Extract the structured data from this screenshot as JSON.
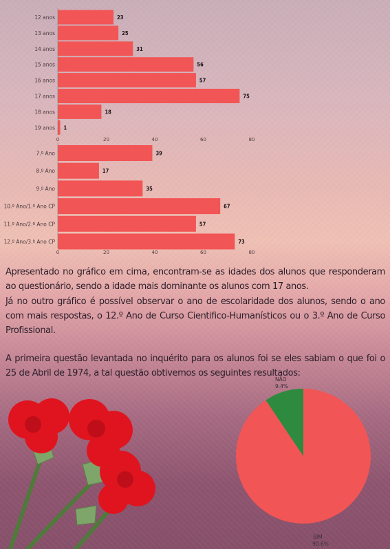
{
  "colors": {
    "bar": "#f25555",
    "pie_sim": "#f25555",
    "pie_nao": "#2e8a3e"
  },
  "chart_data": [
    {
      "type": "bar",
      "orientation": "horizontal",
      "categories": [
        "12 anos",
        "13 anos",
        "14 anos",
        "15 anos",
        "16 anos",
        "17 anos",
        "18 anos",
        "19 anos"
      ],
      "values": [
        23,
        25,
        31,
        56,
        57,
        75,
        18,
        1
      ],
      "xlim": [
        0,
        80
      ],
      "ticks": [
        "0",
        "20",
        "40",
        "60",
        "80"
      ]
    },
    {
      "type": "bar",
      "orientation": "horizontal",
      "categories": [
        "7.º Ano",
        "8.º Ano",
        "9.º Ano",
        "10.º Ano/1.º Ano CP",
        "11.º Ano/2.º Ano CP",
        "12.º Ano/3.º Ano CP"
      ],
      "values": [
        39,
        17,
        35,
        67,
        57,
        73
      ],
      "xlim": [
        0,
        80
      ],
      "ticks": [
        "0",
        "20",
        "40",
        "60",
        "80"
      ]
    },
    {
      "type": "pie",
      "slices": [
        {
          "label": "SIM",
          "percent_label": "90.6%",
          "value": 90.6
        },
        {
          "label": "NÃO",
          "percent_label": "9.4%",
          "value": 9.4
        }
      ]
    }
  ],
  "text": {
    "para1": "Apresentado no gráfico em cima, encontram-se as idades dos alunos que responderam ao questionário, sendo a idade mais dominante os alunos com 17 anos.",
    "para2": "Já no outro gráfico é possível observar o ano de escolaridade dos alunos, sendo o ano com mais respostas, o 12.º Ano de Curso Cientifico-Humanísticos ou o 3.º Ano de Curso Profissional.",
    "para3": "A primeira questão levantada no inquérito para os alunos foi se eles sabiam o que foi o 25 de Abril de 1974, a tal questão obtivemos os seguintes resultados:"
  }
}
